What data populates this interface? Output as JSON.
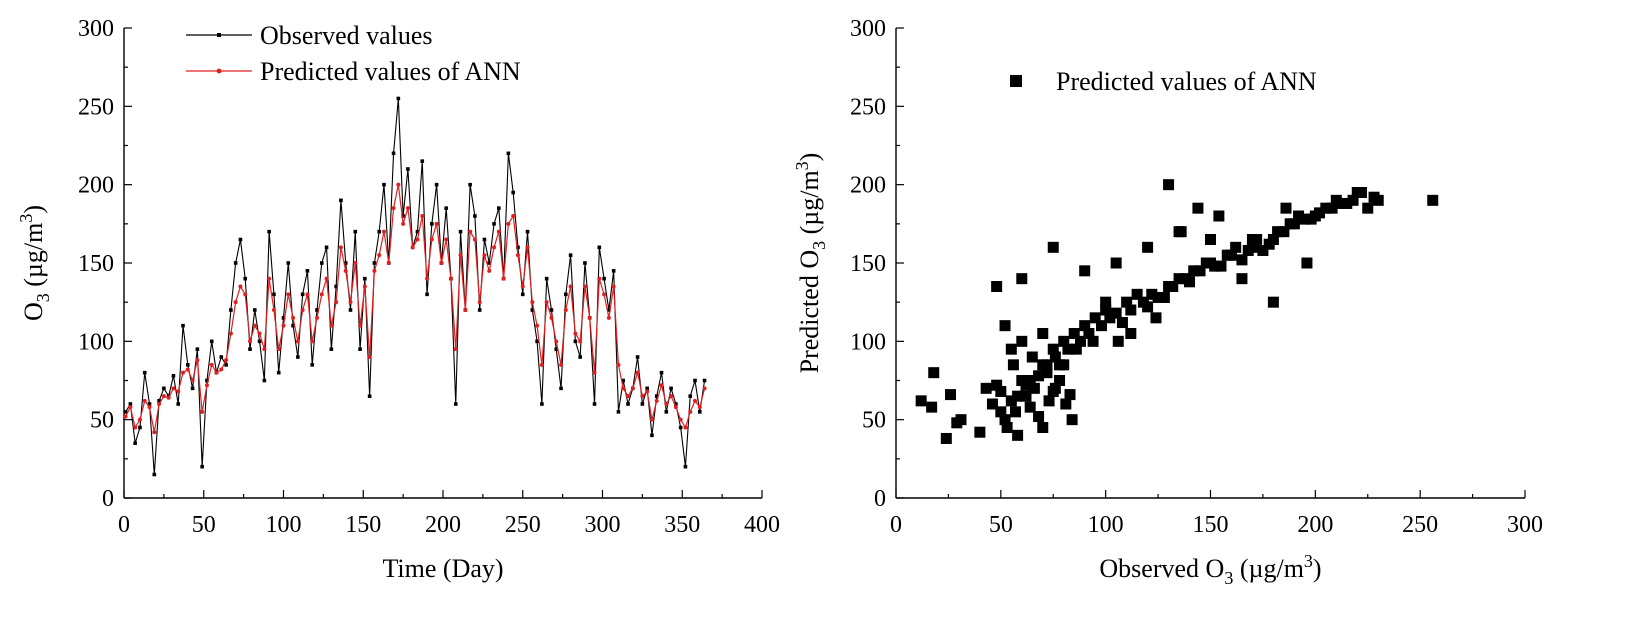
{
  "chart_data": [
    {
      "type": "line",
      "x_axis": {
        "label": "Time (Day)",
        "min": 0,
        "max": 400,
        "ticks": [
          0,
          50,
          100,
          150,
          200,
          250,
          300,
          350,
          400
        ]
      },
      "y_axis": {
        "label_prefix": "O",
        "label_sub": "3",
        "label_suffix": " (µg/m",
        "label_sup": "3",
        "label_close": ")",
        "min": 0,
        "max": 300,
        "ticks": [
          0,
          50,
          100,
          150,
          200,
          250,
          300
        ]
      },
      "legend": {
        "position": "top-left",
        "entries": [
          "Observed values",
          "Predicted values of ANN"
        ]
      },
      "series": [
        {
          "name": "Observed values",
          "color": "#000000",
          "x": [
            1,
            4,
            7,
            10,
            13,
            16,
            19,
            22,
            25,
            28,
            31,
            34,
            37,
            40,
            43,
            46,
            49,
            52,
            55,
            58,
            61,
            64,
            67,
            70,
            73,
            76,
            79,
            82,
            85,
            88,
            91,
            94,
            97,
            100,
            103,
            106,
            109,
            112,
            115,
            118,
            121,
            124,
            127,
            130,
            133,
            136,
            139,
            142,
            145,
            148,
            151,
            154,
            157,
            160,
            163,
            166,
            169,
            172,
            175,
            178,
            181,
            184,
            187,
            190,
            193,
            196,
            199,
            202,
            205,
            208,
            211,
            214,
            217,
            220,
            223,
            226,
            229,
            232,
            235,
            238,
            241,
            244,
            247,
            250,
            253,
            256,
            259,
            262,
            265,
            268,
            271,
            274,
            277,
            280,
            283,
            286,
            289,
            292,
            295,
            298,
            301,
            304,
            307,
            310,
            313,
            316,
            319,
            322,
            325,
            328,
            331,
            334,
            337,
            340,
            343,
            346,
            349,
            352,
            355,
            358,
            361,
            364
          ],
          "values": [
            55,
            60,
            35,
            45,
            80,
            60,
            15,
            62,
            70,
            65,
            78,
            60,
            110,
            85,
            70,
            95,
            20,
            75,
            100,
            80,
            90,
            85,
            120,
            150,
            165,
            140,
            95,
            120,
            100,
            75,
            170,
            130,
            80,
            115,
            150,
            110,
            90,
            130,
            145,
            85,
            120,
            150,
            160,
            95,
            135,
            190,
            150,
            120,
            170,
            95,
            140,
            65,
            150,
            170,
            200,
            150,
            220,
            255,
            180,
            210,
            160,
            170,
            215,
            130,
            175,
            200,
            150,
            185,
            140,
            60,
            170,
            120,
            200,
            180,
            120,
            165,
            150,
            175,
            185,
            140,
            220,
            195,
            160,
            130,
            170,
            120,
            100,
            60,
            140,
            120,
            95,
            70,
            130,
            155,
            100,
            90,
            150,
            115,
            60,
            160,
            140,
            120,
            145,
            55,
            75,
            60,
            70,
            90,
            60,
            70,
            40,
            65,
            80,
            55,
            70,
            60,
            45,
            20,
            65,
            75,
            55,
            75
          ]
        },
        {
          "name": "Predicted values of ANN",
          "color": "#e02020",
          "x": [
            1,
            4,
            7,
            10,
            13,
            16,
            19,
            22,
            25,
            28,
            31,
            34,
            37,
            40,
            43,
            46,
            49,
            52,
            55,
            58,
            61,
            64,
            67,
            70,
            73,
            76,
            79,
            82,
            85,
            88,
            91,
            94,
            97,
            100,
            103,
            106,
            109,
            112,
            115,
            118,
            121,
            124,
            127,
            130,
            133,
            136,
            139,
            142,
            145,
            148,
            151,
            154,
            157,
            160,
            163,
            166,
            169,
            172,
            175,
            178,
            181,
            184,
            187,
            190,
            193,
            196,
            199,
            202,
            205,
            208,
            211,
            214,
            217,
            220,
            223,
            226,
            229,
            232,
            235,
            238,
            241,
            244,
            247,
            250,
            253,
            256,
            259,
            262,
            265,
            268,
            271,
            274,
            277,
            280,
            283,
            286,
            289,
            292,
            295,
            298,
            301,
            304,
            307,
            310,
            313,
            316,
            319,
            322,
            325,
            328,
            331,
            334,
            337,
            340,
            343,
            346,
            349,
            352,
            355,
            358,
            361,
            364
          ],
          "values": [
            52,
            58,
            45,
            50,
            62,
            58,
            42,
            60,
            65,
            64,
            70,
            68,
            80,
            82,
            75,
            88,
            55,
            72,
            85,
            80,
            82,
            88,
            105,
            125,
            135,
            130,
            100,
            110,
            105,
            95,
            140,
            120,
            95,
            110,
            130,
            115,
            100,
            120,
            130,
            100,
            115,
            130,
            140,
            110,
            125,
            160,
            145,
            125,
            150,
            110,
            135,
            90,
            145,
            155,
            170,
            150,
            185,
            200,
            175,
            185,
            160,
            165,
            180,
            140,
            165,
            175,
            150,
            165,
            140,
            95,
            155,
            120,
            170,
            165,
            125,
            155,
            145,
            160,
            170,
            140,
            175,
            180,
            155,
            135,
            160,
            125,
            110,
            85,
            125,
            115,
            100,
            85,
            120,
            135,
            105,
            100,
            135,
            115,
            80,
            140,
            130,
            115,
            135,
            85,
            70,
            65,
            70,
            80,
            65,
            68,
            50,
            62,
            72,
            60,
            65,
            58,
            50,
            45,
            55,
            62,
            58,
            70
          ]
        }
      ]
    },
    {
      "type": "scatter",
      "x_axis": {
        "label_prefix": "Observed O",
        "label_sub": "3",
        "label_suffix": " (µg/m",
        "label_sup": "3",
        "label_close": ")",
        "min": 0,
        "max": 300,
        "ticks": [
          0,
          50,
          100,
          150,
          200,
          250,
          300
        ]
      },
      "y_axis": {
        "label_prefix": "Predicted O",
        "label_sub": "3",
        "label_suffix": " (µg/m",
        "label_sup": "3",
        "label_close": ")",
        "min": 0,
        "max": 300,
        "ticks": [
          0,
          50,
          100,
          150,
          200,
          250,
          300
        ]
      },
      "legend": {
        "position": "top-left",
        "entries": [
          "Predicted values of ANN"
        ]
      },
      "series": [
        {
          "name": "Predicted values of ANN",
          "color": "#000000",
          "x": [
            12,
            17,
            18,
            24,
            26,
            29,
            31,
            40,
            43,
            46,
            48,
            50,
            52,
            53,
            55,
            57,
            58,
            60,
            62,
            64,
            66,
            68,
            70,
            72,
            73,
            75,
            76,
            78,
            80,
            81,
            83,
            84,
            55,
            60,
            65,
            70,
            75,
            80,
            85,
            90,
            95,
            100,
            105,
            110,
            115,
            120,
            125,
            130,
            135,
            140,
            145,
            150,
            155,
            160,
            165,
            170,
            175,
            180,
            185,
            190,
            195,
            200,
            205,
            210,
            215,
            220,
            225,
            230,
            256,
            50,
            58,
            62,
            68,
            72,
            76,
            82,
            88,
            92,
            98,
            102,
            108,
            112,
            118,
            122,
            128,
            132,
            138,
            142,
            148,
            152,
            158,
            162,
            168,
            172,
            178,
            182,
            188,
            192,
            198,
            202,
            208,
            212,
            218,
            222,
            228,
            60,
            75,
            90,
            105,
            120,
            135,
            150,
            165,
            180,
            48,
            52,
            56,
            64,
            70,
            78,
            86,
            94,
            100,
            106,
            112,
            124,
            130,
            136,
            144,
            154,
            160,
            170,
            186,
            196
          ],
          "values": [
            62,
            58,
            80,
            38,
            66,
            48,
            50,
            42,
            70,
            60,
            72,
            68,
            50,
            45,
            62,
            55,
            40,
            75,
            65,
            58,
            70,
            52,
            45,
            80,
            62,
            68,
            70,
            75,
            85,
            60,
            66,
            50,
            95,
            100,
            90,
            85,
            95,
            100,
            105,
            110,
            115,
            120,
            118,
            125,
            130,
            122,
            128,
            135,
            140,
            138,
            145,
            150,
            148,
            155,
            152,
            160,
            158,
            165,
            170,
            175,
            178,
            180,
            185,
            190,
            188,
            195,
            185,
            190,
            190,
            55,
            65,
            72,
            78,
            85,
            90,
            95,
            100,
            105,
            110,
            115,
            112,
            120,
            125,
            130,
            128,
            135,
            140,
            145,
            150,
            148,
            155,
            160,
            158,
            165,
            162,
            170,
            175,
            180,
            178,
            182,
            185,
            188,
            190,
            195,
            192,
            140,
            160,
            145,
            150,
            160,
            170,
            165,
            140,
            125,
            135,
            110,
            85,
            75,
            105,
            85,
            95,
            100,
            125,
            100,
            105,
            115,
            200,
            170,
            185,
            180,
            155,
            165,
            185,
            150
          ]
        }
      ]
    }
  ]
}
